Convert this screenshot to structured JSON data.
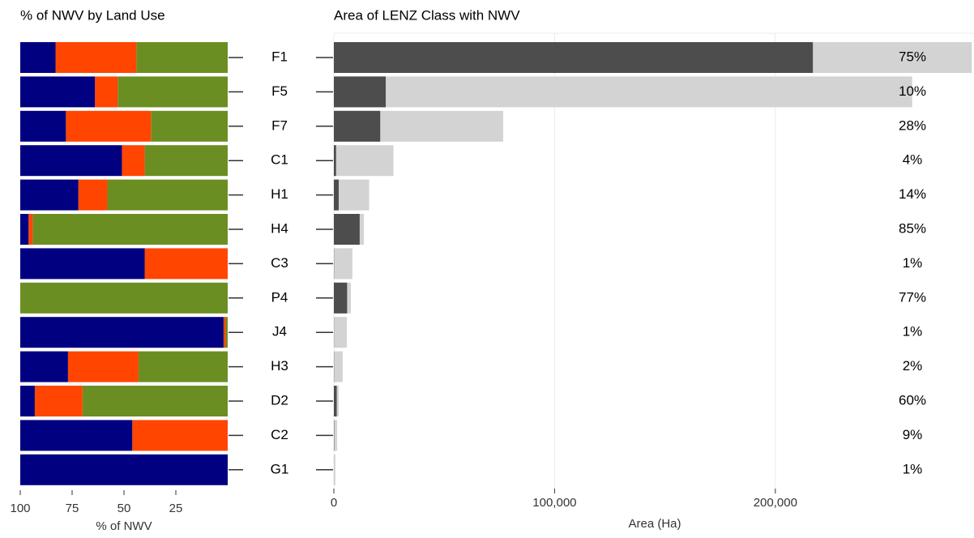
{
  "chart_data": [
    {
      "type": "stacked-barh",
      "title": "% of NWV by Land Use",
      "xlabel": "% of NWV",
      "xlim": [
        100,
        0
      ],
      "xticks": [
        100,
        75,
        50,
        25
      ],
      "series": [
        {
          "color": "#6b8e23",
          "values": [
            44,
            53,
            37,
            40,
            58,
            94,
            0,
            100,
            1,
            43,
            70,
            0,
            0
          ]
        },
        {
          "color": "#ff4500",
          "values": [
            39,
            11,
            41,
            11,
            14,
            2,
            40,
            0,
            1,
            34,
            23,
            46,
            0
          ]
        },
        {
          "color": "#000080",
          "values": [
            17,
            36,
            22,
            49,
            28,
            4,
            60,
            0,
            98,
            23,
            7,
            54,
            100
          ]
        }
      ]
    },
    {
      "type": "overlap-barh",
      "title": "Area of LENZ Class with NWV",
      "xlabel": "Area (Ha)",
      "categories": [
        "F1",
        "F5",
        "F7",
        "C1",
        "H1",
        "H4",
        "C3",
        "P4",
        "J4",
        "H3",
        "D2",
        "C2",
        "G1"
      ],
      "xlim": [
        0,
        290000
      ],
      "xticks": [
        0,
        {
          "value": 100000,
          "label": "100,000"
        },
        {
          "value": 200000,
          "label": "200,000"
        }
      ],
      "grid": true,
      "series": [
        {
          "color": "#d3d3d3",
          "values": [
            289000,
            262000,
            76700,
            27000,
            16000,
            13600,
            8400,
            7700,
            5900,
            4000,
            2200,
            1500,
            700
          ]
        },
        {
          "color": "#4d4d4d",
          "values": [
            217000,
            23500,
            21000,
            1000,
            2200,
            11700,
            80,
            6000,
            60,
            80,
            1300,
            135,
            7
          ]
        }
      ],
      "bar_labels": [
        "75%",
        "10%",
        "28%",
        "4%",
        "14%",
        "85%",
        "1%",
        "77%",
        "1%",
        "2%",
        "60%",
        "9%",
        "1%"
      ]
    }
  ]
}
